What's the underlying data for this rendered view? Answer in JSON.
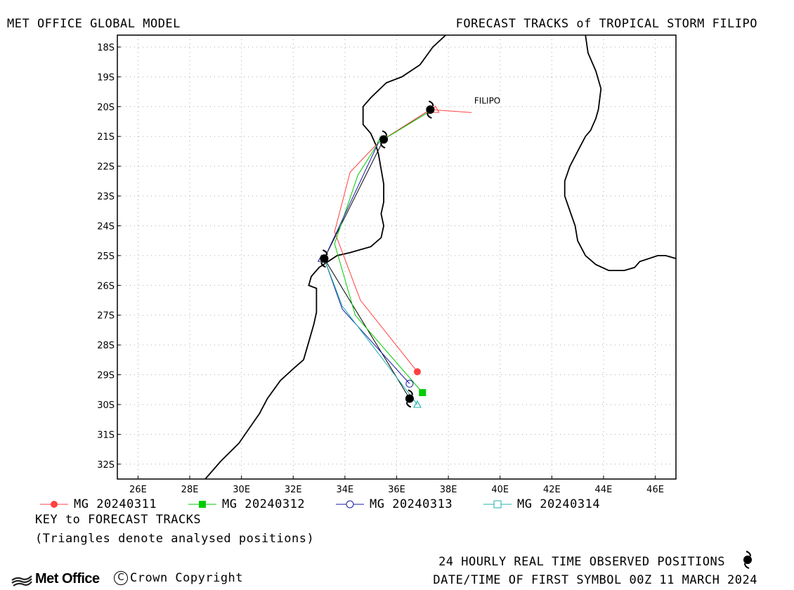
{
  "header": {
    "left_title": "MET OFFICE GLOBAL MODEL",
    "right_title": "FORECAST TRACKS of TROPICAL STORM FILIPO"
  },
  "footer": {
    "key_title": "KEY to FORECAST TRACKS",
    "key_note": "(Triangles denote analysed positions)",
    "observed_note": "24 HOURLY REAL TIME OBSERVED POSITIONS",
    "date_note": "DATE/TIME OF FIRST SYMBOL 00Z 11 MARCH 2024",
    "logo_text": "Met Office",
    "copyright": "Crown Copyright",
    "copyright_symbol": "C"
  },
  "colors": {
    "mg_20240311": "#ff4040",
    "mg_20240312": "#00cc00",
    "mg_20240313": "#1a1aa6",
    "mg_20240314": "#20b0b0",
    "observed": "#000000",
    "coastline": "#000000",
    "grid": "#aaaaaa"
  },
  "chart_data": {
    "type": "scatter",
    "title": "FORECAST TRACKS of TROPICAL STORM FILIPO",
    "xlim": [
      25.2,
      46.8
    ],
    "ylim": [
      -32.5,
      -17.6
    ],
    "xticks": [
      26,
      28,
      30,
      32,
      34,
      36,
      38,
      40,
      42,
      44,
      46
    ],
    "xtick_labels": [
      "26E",
      "28E",
      "30E",
      "32E",
      "34E",
      "36E",
      "38E",
      "40E",
      "42E",
      "44E",
      "46E"
    ],
    "yticks": [
      -18,
      -19,
      -20,
      -21,
      -22,
      -23,
      -24,
      -25,
      -26,
      -27,
      -28,
      -29,
      -30,
      -31,
      -32
    ],
    "ytick_labels": [
      "18S",
      "19S",
      "20S",
      "21S",
      "22S",
      "23S",
      "24S",
      "25S",
      "26S",
      "27S",
      "28S",
      "29S",
      "30S",
      "31S",
      "32S"
    ],
    "grid": true,
    "storm_label": "FILIPO",
    "storm_label_position": [
      39.0,
      -19.9
    ],
    "series": [
      {
        "name": "MG 20240311",
        "color": "#ff4040",
        "marker": "filled-circle",
        "points": [
          [
            38.9,
            -20.2
          ],
          [
            37.3,
            -20.1
          ],
          [
            35.3,
            -21.2
          ],
          [
            34.2,
            -22.2
          ],
          [
            33.6,
            -24.2
          ],
          [
            34.6,
            -26.5
          ],
          [
            36.8,
            -28.9
          ]
        ]
      },
      {
        "name": "MG 20240312",
        "color": "#00cc00",
        "marker": "filled-square",
        "points": [
          [
            37.4,
            -20.1
          ],
          [
            35.3,
            -21.2
          ],
          [
            34.5,
            -22.3
          ],
          [
            33.6,
            -24.6
          ],
          [
            34.4,
            -27.0
          ],
          [
            37.0,
            -29.6
          ]
        ]
      },
      {
        "name": "MG 20240313",
        "color": "#1a1aa6",
        "marker": "open-circle",
        "points": [
          [
            35.3,
            -21.2
          ],
          [
            33.2,
            -25.1
          ],
          [
            33.9,
            -26.8
          ],
          [
            36.5,
            -29.3
          ]
        ]
      },
      {
        "name": "MG 20240314",
        "color": "#20b0b0",
        "marker": "open-triangle",
        "points": [
          [
            33.2,
            -25.1
          ],
          [
            33.9,
            -26.7
          ],
          [
            36.8,
            -30.0
          ]
        ]
      }
    ],
    "analysed_positions": [
      {
        "series": "MG 20240311",
        "lon": 37.5,
        "lat": -20.1
      },
      {
        "series": "MG 20240312",
        "lon": 35.4,
        "lat": -21.1
      },
      {
        "series": "MG 20240313",
        "lon": 33.1,
        "lat": -25.1
      },
      {
        "series": "MG 20240314",
        "lon": 36.8,
        "lat": -30.0
      }
    ],
    "observed": {
      "name": "24 HOURLY REAL TIME OBSERVED POSITIONS",
      "points": [
        [
          37.3,
          -20.1
        ],
        [
          35.5,
          -21.1
        ],
        [
          33.2,
          -25.1
        ],
        [
          36.5,
          -29.8
        ]
      ]
    },
    "coastlines": [
      [
        [
          37.9,
          -17.6
        ],
        [
          37.4,
          -18.0
        ],
        [
          36.9,
          -18.6
        ],
        [
          36.2,
          -19.0
        ],
        [
          35.6,
          -19.2
        ],
        [
          35.0,
          -19.7
        ],
        [
          34.7,
          -20.0
        ],
        [
          34.7,
          -20.6
        ],
        [
          35.0,
          -20.9
        ],
        [
          35.2,
          -21.3
        ],
        [
          35.3,
          -21.6
        ],
        [
          35.4,
          -22.1
        ],
        [
          35.5,
          -22.6
        ],
        [
          35.5,
          -23.2
        ],
        [
          35.4,
          -23.6
        ],
        [
          35.5,
          -24.0
        ],
        [
          35.4,
          -24.4
        ],
        [
          35.0,
          -24.7
        ],
        [
          34.2,
          -24.9
        ],
        [
          33.7,
          -25.0
        ],
        [
          33.0,
          -25.4
        ],
        [
          32.7,
          -25.7
        ],
        [
          32.6,
          -26.0
        ],
        [
          32.9,
          -26.1
        ],
        [
          32.9,
          -26.5
        ],
        [
          32.9,
          -26.9
        ],
        [
          32.8,
          -27.3
        ],
        [
          32.6,
          -27.9
        ],
        [
          32.4,
          -28.5
        ],
        [
          32.0,
          -28.8
        ],
        [
          31.5,
          -29.2
        ],
        [
          31.0,
          -29.8
        ],
        [
          30.7,
          -30.3
        ],
        [
          30.3,
          -30.8
        ],
        [
          29.9,
          -31.3
        ],
        [
          29.2,
          -31.9
        ],
        [
          28.6,
          -32.5
        ]
      ],
      [
        [
          43.3,
          -17.6
        ],
        [
          43.4,
          -18.2
        ],
        [
          43.7,
          -18.8
        ],
        [
          43.9,
          -19.4
        ],
        [
          43.8,
          -20.1
        ],
        [
          43.7,
          -20.4
        ],
        [
          43.5,
          -20.8
        ],
        [
          43.3,
          -21.0
        ],
        [
          43.0,
          -21.5
        ],
        [
          42.7,
          -22.0
        ],
        [
          42.5,
          -22.5
        ],
        [
          42.5,
          -23.0
        ],
        [
          42.7,
          -23.5
        ],
        [
          42.9,
          -24.0
        ],
        [
          43.0,
          -24.5
        ],
        [
          43.3,
          -25.0
        ],
        [
          43.7,
          -25.3
        ],
        [
          44.2,
          -25.5
        ],
        [
          44.8,
          -25.5
        ],
        [
          45.2,
          -25.4
        ],
        [
          45.4,
          -25.2
        ],
        [
          46.1,
          -25.0
        ],
        [
          46.4,
          -25.0
        ],
        [
          46.8,
          -25.1
        ]
      ]
    ]
  }
}
